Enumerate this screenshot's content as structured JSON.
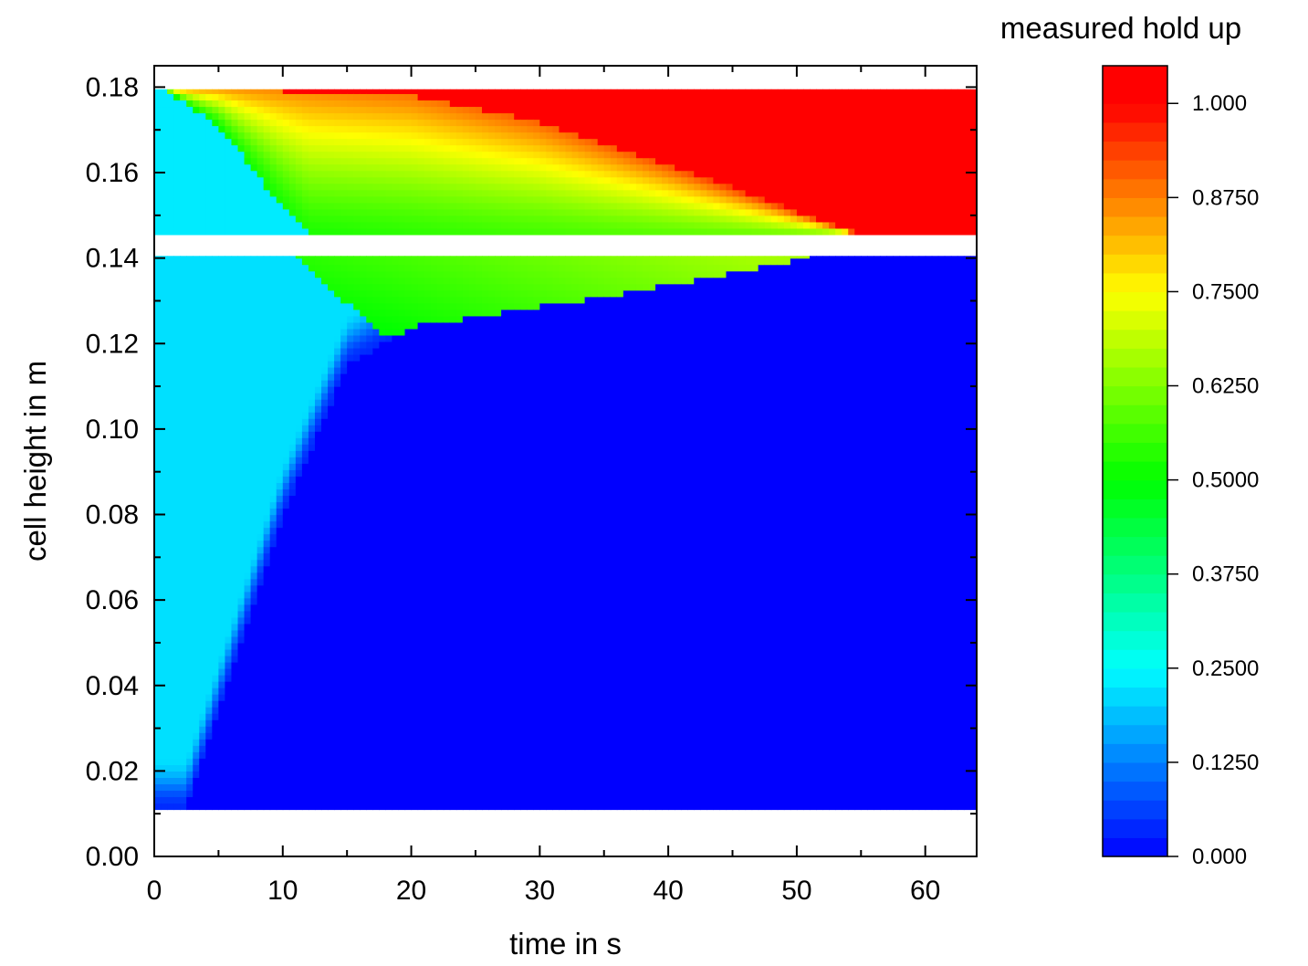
{
  "chart_data": {
    "type": "heatmap",
    "title": "",
    "xlabel": "time in s",
    "ylabel": "cell height in m",
    "xlim": [
      0,
      64
    ],
    "ylim": [
      0,
      0.185
    ],
    "xticks": [
      "0",
      "10",
      "20",
      "30",
      "40",
      "50",
      "60"
    ],
    "yticks": [
      "0.00",
      "0.02",
      "0.04",
      "0.06",
      "0.08",
      "0.10",
      "0.12",
      "0.14",
      "0.16",
      "0.18"
    ],
    "grid": false,
    "colorbar": {
      "title": "measured hold up",
      "range": [
        0,
        1.05
      ],
      "ticks": [
        {
          "value": 0.0,
          "label": "0.000"
        },
        {
          "value": 0.125,
          "label": "0.1250"
        },
        {
          "value": 0.25,
          "label": "0.2500"
        },
        {
          "value": 0.375,
          "label": "0.3750"
        },
        {
          "value": 0.5,
          "label": "0.5000"
        },
        {
          "value": 0.625,
          "label": "0.6250"
        },
        {
          "value": 0.75,
          "label": "0.7500"
        },
        {
          "value": 0.875,
          "label": "0.8750"
        },
        {
          "value": 1.0,
          "label": "1.000"
        }
      ],
      "colormap": [
        "#0000ff",
        "#00ffff",
        "#00ff00",
        "#ffff00",
        "#ff0000"
      ]
    },
    "regions": {
      "lower": {
        "y_range": [
          0.011,
          0.1405
        ],
        "t_range": [
          0,
          64
        ]
      },
      "upper": {
        "y_range": [
          0.1455,
          0.1795
        ],
        "t_range": [
          0,
          64
        ]
      }
    },
    "features": {
      "upper_red_front": [
        [
          5,
          0.1795
        ],
        [
          20,
          0.178
        ],
        [
          30,
          0.172
        ],
        [
          40,
          0.162
        ],
        [
          50,
          0.151
        ],
        [
          55,
          0.1455
        ]
      ],
      "upper_low_boundary": [
        [
          0.8,
          0.1795
        ],
        [
          5,
          0.171
        ],
        [
          10,
          0.152
        ],
        [
          12,
          0.1455
        ]
      ],
      "lower_blue_front": [
        [
          2.5,
          0.011
        ],
        [
          10,
          0.08
        ],
        [
          15,
          0.115
        ],
        [
          20,
          0.124
        ],
        [
          35,
          0.131
        ],
        [
          45,
          0.1365
        ],
        [
          51.5,
          0.1405
        ]
      ],
      "lower_green_left": [
        [
          8,
          0.1405
        ],
        [
          14,
          0.128
        ],
        [
          17,
          0.124
        ]
      ]
    }
  }
}
